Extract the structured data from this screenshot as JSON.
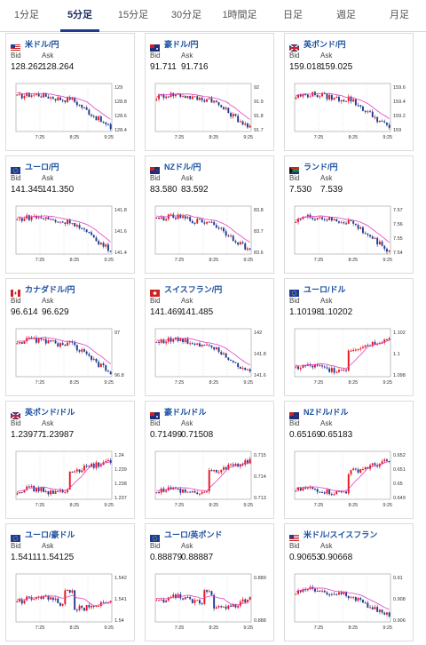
{
  "tabs": [
    {
      "label": "1分足",
      "active": false
    },
    {
      "label": "5分足",
      "active": true
    },
    {
      "label": "15分足",
      "active": false
    },
    {
      "label": "30分足",
      "active": false
    },
    {
      "label": "1時間足",
      "active": false
    },
    {
      "label": "日足",
      "active": false
    },
    {
      "label": "週足",
      "active": false
    },
    {
      "label": "月足",
      "active": false
    }
  ],
  "labels": {
    "bid": "Bid",
    "ask": "Ask"
  },
  "x_ticks": [
    "7:25",
    "8:25",
    "9:25"
  ],
  "colors": {
    "up": "#e8141c",
    "down": "#1f3a93",
    "ma": "#e040c0",
    "link": "#1a4fa0"
  },
  "cards": [
    {
      "pair": "米ドル/円",
      "bid": "128.262",
      "ask": "128.264",
      "flag": "us",
      "y_ticks": [
        "129",
        "128.8",
        "128.6",
        "128.4"
      ],
      "ylim": [
        128.3,
        129.1
      ],
      "shape": "fall"
    },
    {
      "pair": "豪ドル/円",
      "bid": "91.711",
      "ask": "91.716",
      "flag": "au",
      "y_ticks": [
        "92",
        "91.9",
        "91.8",
        "91.7"
      ],
      "ylim": [
        91.68,
        92.05
      ],
      "shape": "fall"
    },
    {
      "pair": "英ポンド/円",
      "bid": "159.018",
      "ask": "159.025",
      "flag": "gb",
      "y_ticks": [
        "159.6",
        "159.4",
        "159.2",
        "159"
      ],
      "ylim": [
        158.95,
        159.7
      ],
      "shape": "fall"
    },
    {
      "pair": "ユーロ/円",
      "bid": "141.345",
      "ask": "141.350",
      "flag": "eu",
      "y_ticks": [
        "141.8",
        "141.6",
        "141.4"
      ],
      "ylim": [
        141.3,
        141.9
      ],
      "shape": "fall"
    },
    {
      "pair": "NZドル/円",
      "bid": "83.580",
      "ask": "83.592",
      "flag": "nz",
      "y_ticks": [
        "83.8",
        "83.7",
        "83.6"
      ],
      "ylim": [
        83.55,
        83.88
      ],
      "shape": "fall"
    },
    {
      "pair": "ランド/円",
      "bid": "7.530",
      "ask": "7.539",
      "flag": "za",
      "y_ticks": [
        "7.57",
        "7.56",
        "7.55",
        "7.54"
      ],
      "ylim": [
        7.528,
        7.575
      ],
      "shape": "fall"
    },
    {
      "pair": "カナダドル/円",
      "bid": "96.614",
      "ask": "96.629",
      "flag": "ca",
      "y_ticks": [
        "97",
        "96.8"
      ],
      "ylim": [
        96.55,
        97.1
      ],
      "shape": "fall"
    },
    {
      "pair": "スイスフラン/円",
      "bid": "141.469",
      "ask": "141.485",
      "flag": "ch",
      "y_ticks": [
        "142",
        "141.8",
        "141.6"
      ],
      "ylim": [
        141.45,
        142.05
      ],
      "shape": "fall"
    },
    {
      "pair": "ユーロ/ドル",
      "bid": "1.10198",
      "ask": "1.10202",
      "flag": "eu",
      "y_ticks": [
        "1.102",
        "1.1",
        "1.098"
      ],
      "ylim": [
        1.0975,
        1.1035
      ],
      "shape": "rise"
    },
    {
      "pair": "英ポンド/ドル",
      "bid": "1.23977",
      "ask": "1.23987",
      "flag": "gb",
      "y_ticks": [
        "1.24",
        "1.239",
        "1.238",
        "1.237"
      ],
      "ylim": [
        1.2365,
        1.2405
      ],
      "shape": "rise"
    },
    {
      "pair": "豪ドル/ドル",
      "bid": "0.71499",
      "ask": "0.71508",
      "flag": "au",
      "y_ticks": [
        "0.715",
        "0.714",
        "0.713"
      ],
      "ylim": [
        0.7125,
        0.7157
      ],
      "shape": "rise"
    },
    {
      "pair": "NZドル/ドル",
      "bid": "0.65169",
      "ask": "0.65183",
      "flag": "nz",
      "y_ticks": [
        "0.652",
        "0.651",
        "0.65",
        "0.649"
      ],
      "ylim": [
        0.6485,
        0.6525
      ],
      "shape": "rise"
    },
    {
      "pair": "ユーロ/豪ドル",
      "bid": "1.54111",
      "ask": "1.54125",
      "flag": "eu",
      "y_ticks": [
        "1.542",
        "1.541",
        "1.54"
      ],
      "ylim": [
        1.5396,
        1.5425
      ],
      "shape": "flat"
    },
    {
      "pair": "ユーロ/英ポンド",
      "bid": "0.88879",
      "ask": "0.88887",
      "flag": "eu",
      "y_ticks": [
        "0.889",
        "0.888"
      ],
      "ylim": [
        0.8877,
        0.8894
      ],
      "shape": "flat"
    },
    {
      "pair": "米ドル/スイスフラン",
      "bid": "0.90653",
      "ask": "0.90668",
      "flag": "us",
      "y_ticks": [
        "0.91",
        "0.908",
        "0.906"
      ],
      "ylim": [
        0.9055,
        0.9105
      ],
      "shape": "fall2"
    }
  ]
}
